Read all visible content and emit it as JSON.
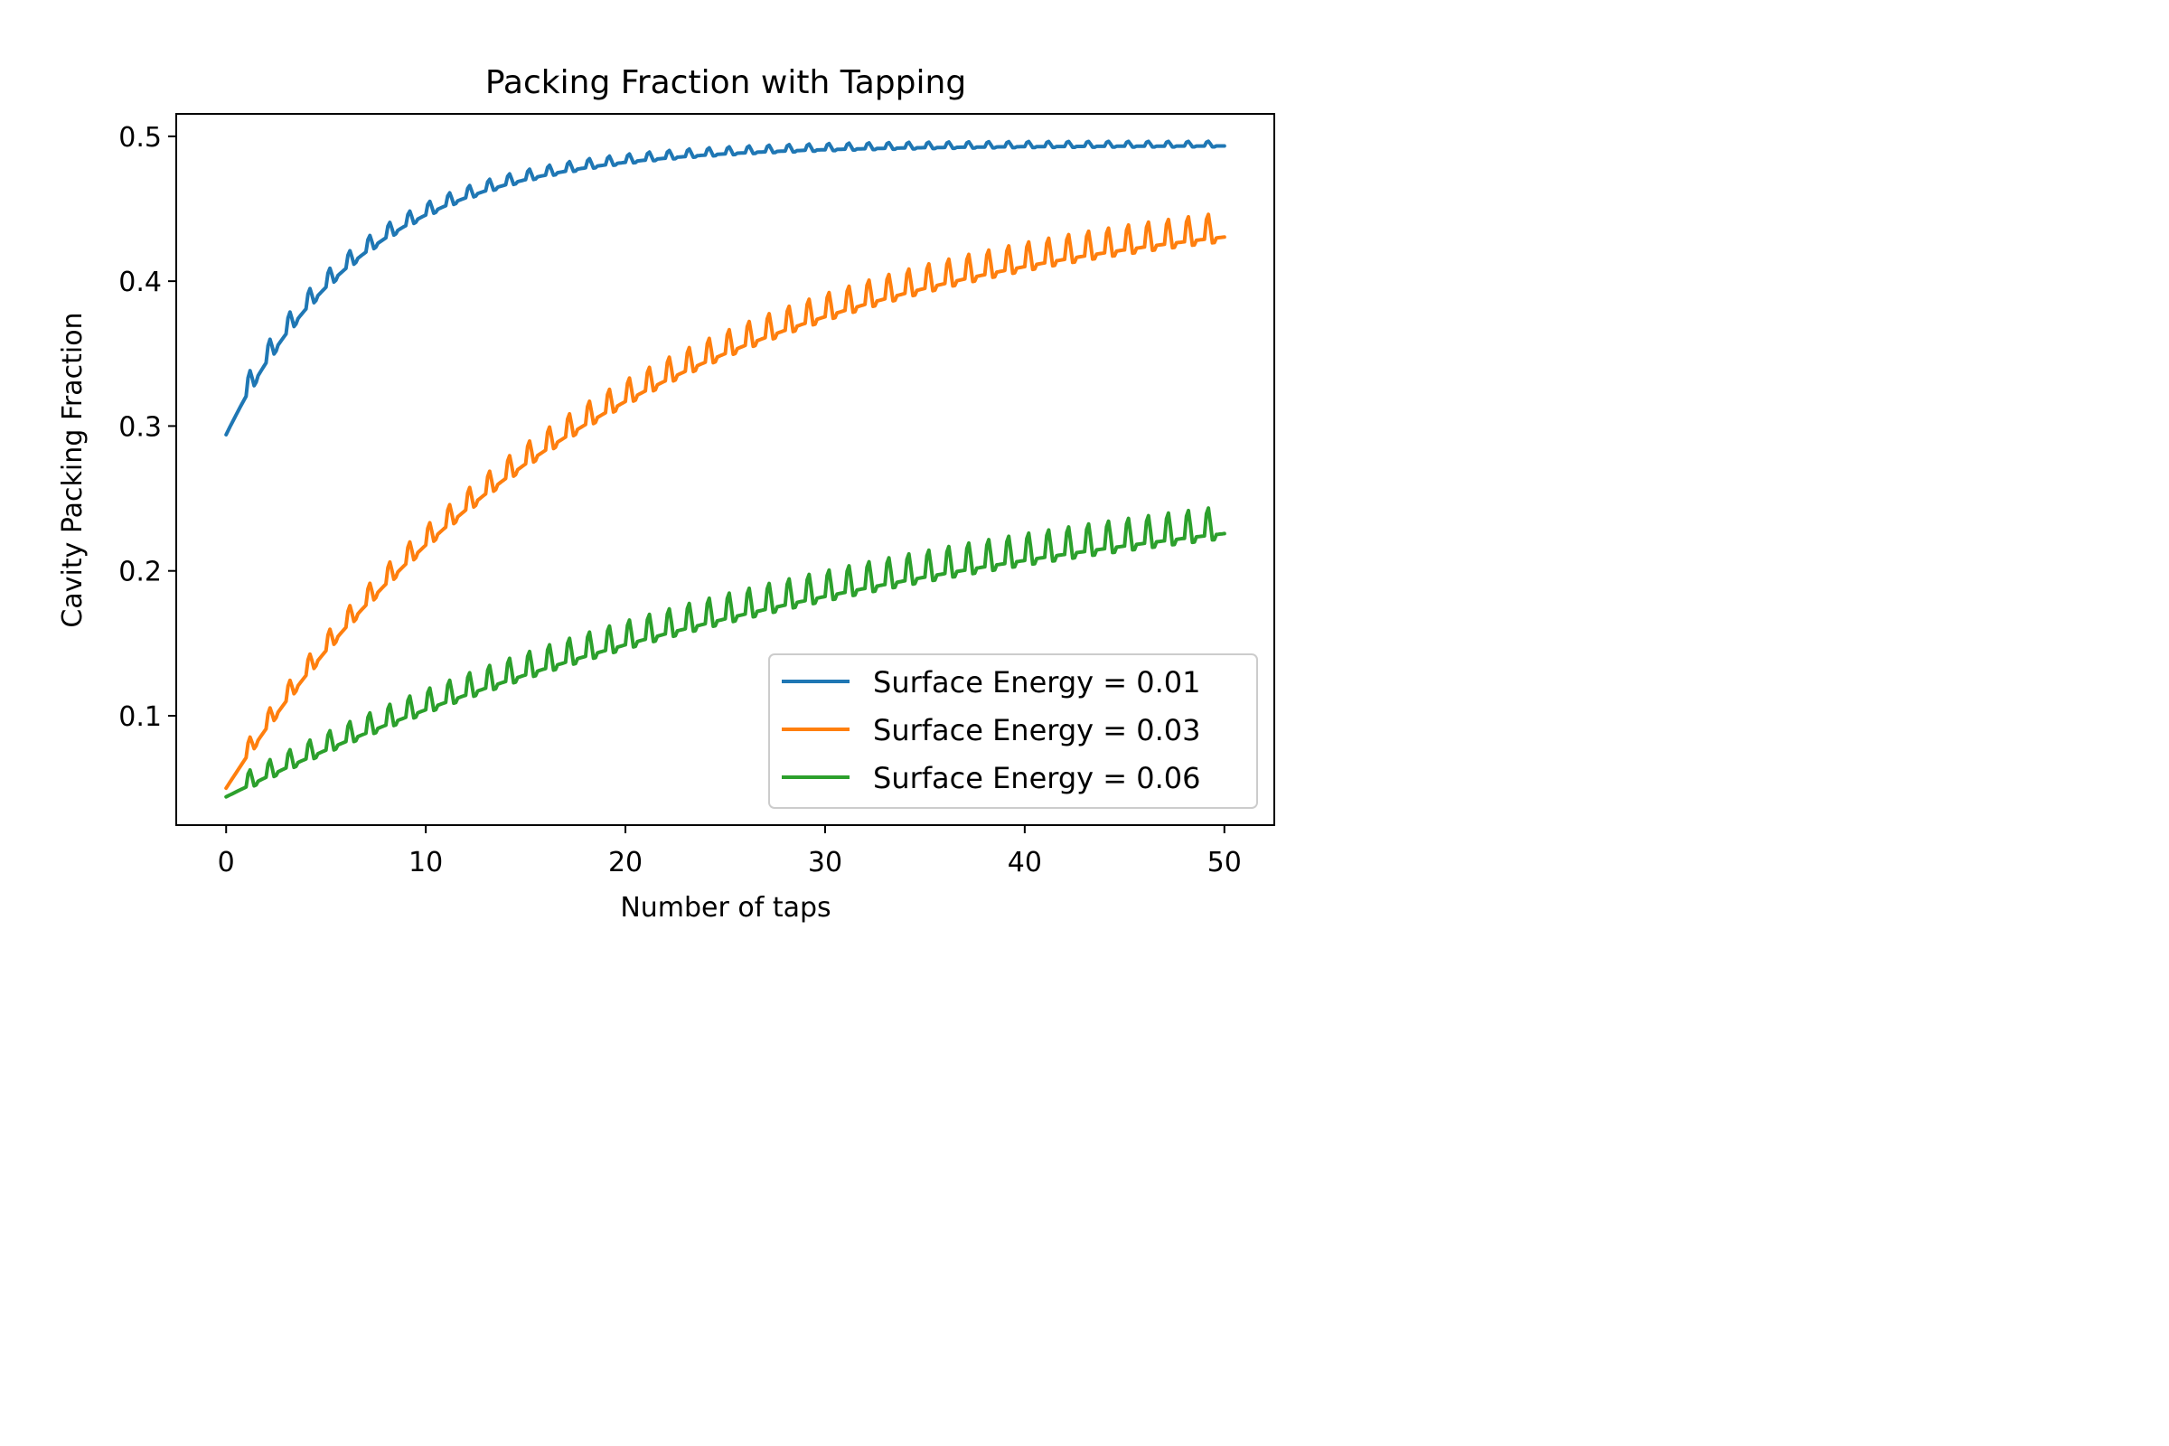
{
  "chart_data": {
    "type": "line",
    "title": "Packing Fraction with Tapping",
    "xlabel": "Number of taps",
    "ylabel": "Cavity Packing Fraction",
    "xlim": [
      -2.5,
      52.5
    ],
    "ylim": [
      0.0245,
      0.5155
    ],
    "xticks": [
      0,
      10,
      20,
      30,
      40,
      50
    ],
    "xtick_labels": [
      "0",
      "10",
      "20",
      "30",
      "40",
      "50"
    ],
    "yticks": [
      0.1,
      0.2,
      0.3,
      0.4,
      0.5
    ],
    "ytick_labels": [
      "0.1",
      "0.2",
      "0.3",
      "0.4",
      "0.5"
    ],
    "grid": false,
    "legend_position": "lower-right",
    "sampling": {
      "taps": 50,
      "samples_per_tap": 10
    },
    "series": [
      {
        "name": "Surface Energy = 0.01",
        "color": "#1f77b4",
        "baseline_start": 0.294,
        "baseline_end": 0.4935,
        "decay_taps": 7.0,
        "oscillation_amplitude_start": 0.014,
        "oscillation_amplitude_end": 0.003,
        "oscillation_decay_taps": 14.0,
        "values_at_integer_taps": [
          0.294,
          0.322,
          0.346,
          0.367,
          0.385,
          0.401,
          0.415,
          0.427,
          0.437,
          0.446,
          0.454,
          0.46,
          0.466,
          0.47,
          0.474,
          0.478,
          0.48,
          0.483,
          0.485,
          0.486,
          0.487,
          0.488,
          0.489,
          0.49,
          0.491,
          0.491,
          0.492,
          0.492,
          0.492,
          0.493,
          0.493,
          0.493,
          0.493,
          0.493,
          0.493,
          0.493,
          0.493,
          0.493,
          0.493,
          0.493,
          0.493,
          0.493,
          0.493,
          0.493,
          0.493,
          0.493,
          0.493,
          0.493,
          0.493,
          0.493,
          0.493
        ]
      },
      {
        "name": "Surface Energy = 0.03",
        "color": "#ff7f0e",
        "baseline_start": 0.05,
        "baseline_end": 0.46,
        "decay_taps": 19.0,
        "oscillation_amplitude_start": 0.01,
        "oscillation_amplitude_end": 0.018,
        "oscillation_decay_taps": 20.0,
        "values_at_integer_taps": [
          0.05,
          0.072,
          0.092,
          0.112,
          0.13,
          0.148,
          0.165,
          0.181,
          0.196,
          0.211,
          0.224,
          0.237,
          0.25,
          0.261,
          0.272,
          0.283,
          0.293,
          0.302,
          0.311,
          0.32,
          0.328,
          0.335,
          0.342,
          0.349,
          0.355,
          0.361,
          0.366,
          0.372,
          0.377,
          0.381,
          0.386,
          0.39,
          0.394,
          0.397,
          0.401,
          0.404,
          0.407,
          0.41,
          0.413,
          0.415,
          0.418,
          0.42,
          0.422,
          0.424,
          0.426,
          0.428,
          0.43,
          0.431,
          0.433,
          0.434,
          0.418
        ]
      },
      {
        "name": "Surface Energy = 0.06",
        "color": "#2ca02c",
        "baseline_start": 0.044,
        "baseline_end": 0.28,
        "decay_taps": 34.0,
        "oscillation_amplitude_start": 0.01,
        "oscillation_amplitude_end": 0.02,
        "oscillation_decay_taps": 18.0,
        "values_at_integer_taps": [
          0.044,
          0.051,
          0.058,
          0.064,
          0.071,
          0.077,
          0.083,
          0.089,
          0.095,
          0.101,
          0.107,
          0.112,
          0.117,
          0.123,
          0.128,
          0.133,
          0.138,
          0.142,
          0.147,
          0.151,
          0.156,
          0.16,
          0.164,
          0.168,
          0.172,
          0.176,
          0.179,
          0.183,
          0.186,
          0.19,
          0.193,
          0.196,
          0.199,
          0.202,
          0.205,
          0.208,
          0.211,
          0.213,
          0.216,
          0.218,
          0.221,
          0.223,
          0.225,
          0.228,
          0.23,
          0.232,
          0.234,
          0.236,
          0.238,
          0.24,
          0.213
        ]
      }
    ]
  }
}
